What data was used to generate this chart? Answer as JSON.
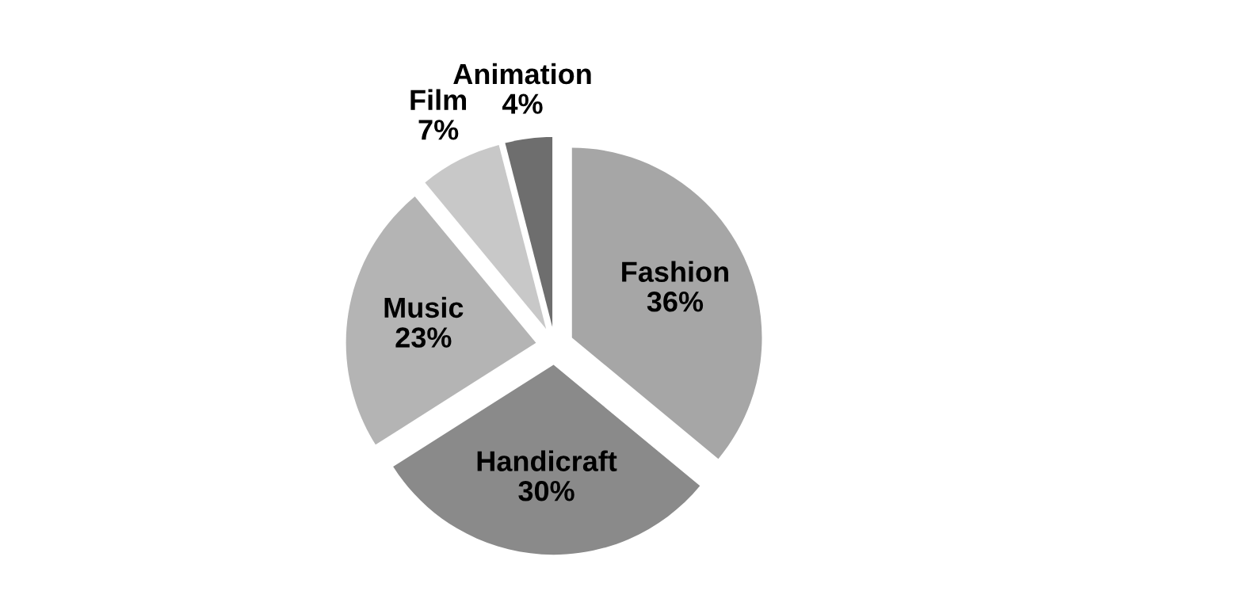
{
  "chart_data": {
    "type": "pie",
    "categories": [
      "Fashion",
      "Handicraft",
      "Music",
      "Film",
      "Animation"
    ],
    "values": [
      36,
      30,
      23,
      7,
      4
    ],
    "colors": [
      "#a6a6a6",
      "#8a8a8a",
      "#b4b4b4",
      "#c8c8c8",
      "#6e6e6e"
    ],
    "value_labels": [
      "36%",
      "30%",
      "23%",
      "7%",
      "4%"
    ],
    "legend": false
  }
}
